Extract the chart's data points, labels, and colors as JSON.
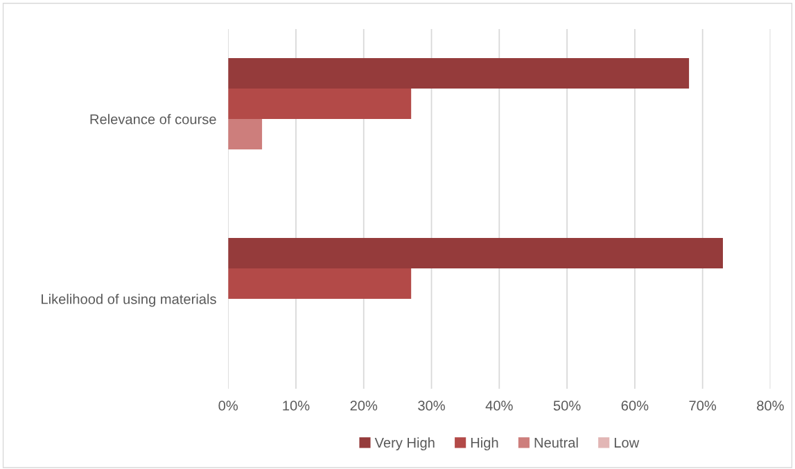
{
  "chart_data": {
    "type": "bar",
    "orientation": "horizontal",
    "categories": [
      "Relevance of course",
      "Likelihood of using materials"
    ],
    "series": [
      {
        "name": "Very High",
        "color": "#953b3b",
        "values": [
          68,
          73
        ]
      },
      {
        "name": "High",
        "color": "#b34a48",
        "values": [
          27,
          27
        ]
      },
      {
        "name": "Neutral",
        "color": "#cd7e7c",
        "values": [
          5,
          0
        ]
      },
      {
        "name": "Low",
        "color": "#e2b6b5",
        "values": [
          0,
          0
        ]
      }
    ],
    "xlim": [
      0,
      80
    ],
    "xticks": [
      {
        "value": 0,
        "label": "0%"
      },
      {
        "value": 10,
        "label": "10%"
      },
      {
        "value": 20,
        "label": "20%"
      },
      {
        "value": 30,
        "label": "30%"
      },
      {
        "value": 40,
        "label": "40%"
      },
      {
        "value": 50,
        "label": "50%"
      },
      {
        "value": 60,
        "label": "60%"
      },
      {
        "value": 70,
        "label": "70%"
      },
      {
        "value": 80,
        "label": "80%"
      }
    ],
    "grid": "x",
    "legend": "bottom"
  }
}
